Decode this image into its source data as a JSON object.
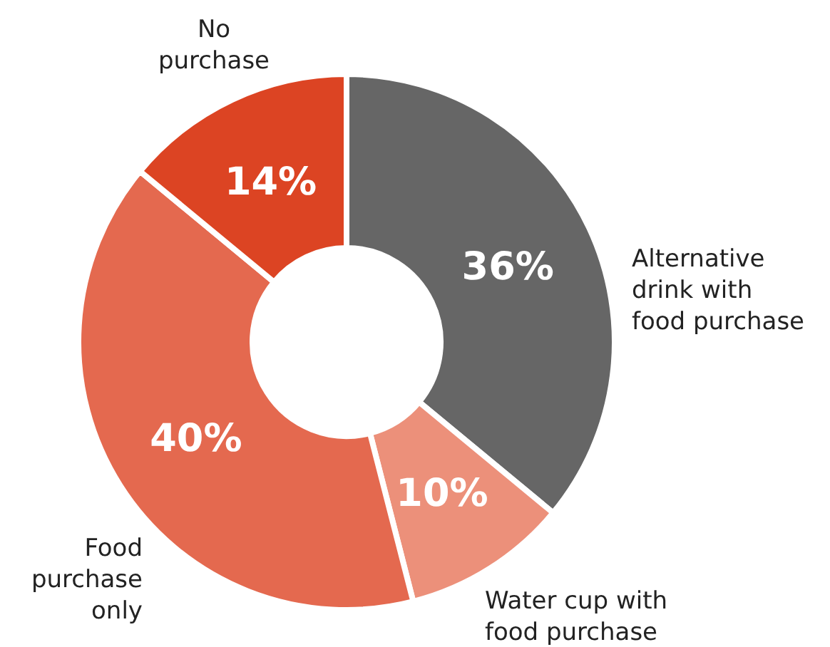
{
  "chart_data": {
    "type": "donut",
    "categories": [
      "Alternative drink with food purchase",
      "Water cup with food purchase",
      "Food purchase only",
      "No purchase"
    ],
    "values": [
      36,
      10,
      40,
      14
    ],
    "colors": [
      "#666666",
      "#ec907a",
      "#e4694f",
      "#dc4423"
    ],
    "value_labels": [
      "36%",
      "10%",
      "40%",
      "14%"
    ]
  }
}
